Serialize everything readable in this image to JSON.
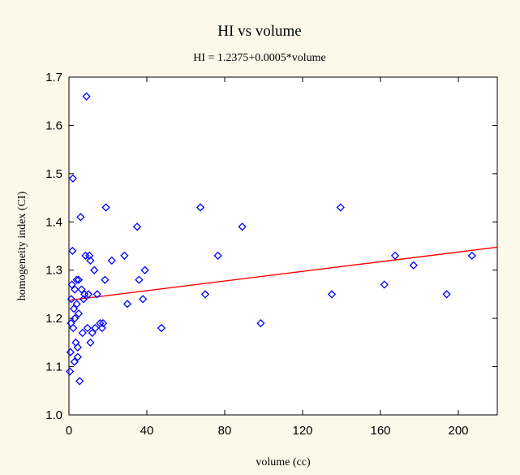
{
  "chart_data": {
    "type": "scatter",
    "title": "HI vs volume",
    "subtitle": "HI = 1.2375+0.0005*volume",
    "xlabel": "volume (cc)",
    "ylabel": "homogeneity index (CI)",
    "xlim": [
      0,
      220
    ],
    "ylim": [
      1.0,
      1.7
    ],
    "xticks": [
      0,
      40,
      80,
      120,
      160,
      200
    ],
    "yticks": [
      1.0,
      1.1,
      1.2,
      1.3,
      1.4,
      1.5,
      1.6,
      1.7
    ],
    "xtick_labels": [
      "0",
      "40",
      "80",
      "120",
      "160",
      "200"
    ],
    "ytick_labels": [
      "1.0",
      "1.1",
      "1.2",
      "1.3",
      "1.4",
      "1.5",
      "1.6",
      "1.7"
    ],
    "grid": false,
    "regression": {
      "intercept": 1.2375,
      "slope": 0.0005
    },
    "colors": {
      "points": "#0000ff",
      "fit_line": "#ff0000",
      "background": "#fdf8ea",
      "plot_area": "#ffffff"
    },
    "points": [
      {
        "x": 0.5,
        "y": 1.09
      },
      {
        "x": 0.8,
        "y": 1.13
      },
      {
        "x": 1.0,
        "y": 1.19
      },
      {
        "x": 1.2,
        "y": 1.24
      },
      {
        "x": 1.5,
        "y": 1.27
      },
      {
        "x": 1.8,
        "y": 1.34
      },
      {
        "x": 2.0,
        "y": 1.49
      },
      {
        "x": 2.2,
        "y": 1.18
      },
      {
        "x": 2.5,
        "y": 1.22
      },
      {
        "x": 2.8,
        "y": 1.11
      },
      {
        "x": 3.0,
        "y": 1.26
      },
      {
        "x": 3.0,
        "y": 1.2
      },
      {
        "x": 3.5,
        "y": 1.15
      },
      {
        "x": 4.0,
        "y": 1.28
      },
      {
        "x": 4.0,
        "y": 1.23
      },
      {
        "x": 4.5,
        "y": 1.12
      },
      {
        "x": 4.5,
        "y": 1.14
      },
      {
        "x": 5.0,
        "y": 1.28
      },
      {
        "x": 5.0,
        "y": 1.21
      },
      {
        "x": 5.5,
        "y": 1.07
      },
      {
        "x": 6.0,
        "y": 1.41
      },
      {
        "x": 6.5,
        "y": 1.26
      },
      {
        "x": 7.0,
        "y": 1.17
      },
      {
        "x": 7.5,
        "y": 1.24
      },
      {
        "x": 8.0,
        "y": 1.25
      },
      {
        "x": 8.5,
        "y": 1.33
      },
      {
        "x": 9.0,
        "y": 1.66
      },
      {
        "x": 9.5,
        "y": 1.18
      },
      {
        "x": 10.0,
        "y": 1.25
      },
      {
        "x": 10.5,
        "y": 1.33
      },
      {
        "x": 11.0,
        "y": 1.32
      },
      {
        "x": 11.0,
        "y": 1.15
      },
      {
        "x": 12.0,
        "y": 1.17
      },
      {
        "x": 13.0,
        "y": 1.3
      },
      {
        "x": 13.5,
        "y": 1.18
      },
      {
        "x": 14.5,
        "y": 1.25
      },
      {
        "x": 16.0,
        "y": 1.19
      },
      {
        "x": 17.0,
        "y": 1.18
      },
      {
        "x": 17.5,
        "y": 1.19
      },
      {
        "x": 18.5,
        "y": 1.28
      },
      {
        "x": 19.0,
        "y": 1.43
      },
      {
        "x": 22.0,
        "y": 1.32
      },
      {
        "x": 28.5,
        "y": 1.33
      },
      {
        "x": 30.0,
        "y": 1.23
      },
      {
        "x": 35.0,
        "y": 1.39
      },
      {
        "x": 36.0,
        "y": 1.28
      },
      {
        "x": 38.0,
        "y": 1.24
      },
      {
        "x": 39.0,
        "y": 1.3
      },
      {
        "x": 47.5,
        "y": 1.18
      },
      {
        "x": 67.5,
        "y": 1.43
      },
      {
        "x": 70.0,
        "y": 1.25
      },
      {
        "x": 76.5,
        "y": 1.33
      },
      {
        "x": 89.0,
        "y": 1.39
      },
      {
        "x": 98.5,
        "y": 1.19
      },
      {
        "x": 135.0,
        "y": 1.25
      },
      {
        "x": 139.5,
        "y": 1.43
      },
      {
        "x": 162.0,
        "y": 1.27
      },
      {
        "x": 167.5,
        "y": 1.33
      },
      {
        "x": 177.0,
        "y": 1.31
      },
      {
        "x": 194.0,
        "y": 1.25
      },
      {
        "x": 207.0,
        "y": 1.33
      }
    ]
  }
}
